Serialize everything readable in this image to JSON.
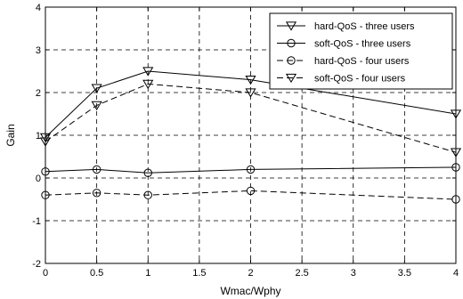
{
  "chart_data": {
    "type": "line",
    "xlabel": "Wmac/Wphy",
    "ylabel": "Gain",
    "xlim": [
      0,
      4
    ],
    "ylim": [
      -2,
      4
    ],
    "xticks": [
      "0",
      "0.5",
      "1",
      "1.5",
      "2",
      "2.5",
      "3",
      "3.5",
      "4"
    ],
    "yticks": [
      "-2",
      "-1",
      "0",
      "1",
      "2",
      "3",
      "4"
    ],
    "grid": true,
    "legend_position": "top-right",
    "x": [
      0,
      0.5,
      1,
      2,
      4
    ],
    "series": [
      {
        "name": "hard-QoS  - three users",
        "marker": "triangle-down",
        "dash": "solid",
        "values": [
          0.95,
          2.1,
          2.5,
          2.3,
          1.5
        ]
      },
      {
        "name": "soft-QoS  - three users",
        "marker": "circle",
        "dash": "solid",
        "values": [
          0.15,
          0.2,
          0.12,
          0.2,
          0.25
        ]
      },
      {
        "name": "hard-QoS  - four users",
        "marker": "circle",
        "dash": "dashed",
        "values": [
          -0.4,
          -0.35,
          -0.4,
          -0.3,
          -0.5
        ]
      },
      {
        "name": "soft-QoS  - four users",
        "marker": "triangle-down",
        "dash": "dashed",
        "values": [
          0.85,
          1.7,
          2.2,
          2.0,
          0.6
        ]
      }
    ]
  }
}
